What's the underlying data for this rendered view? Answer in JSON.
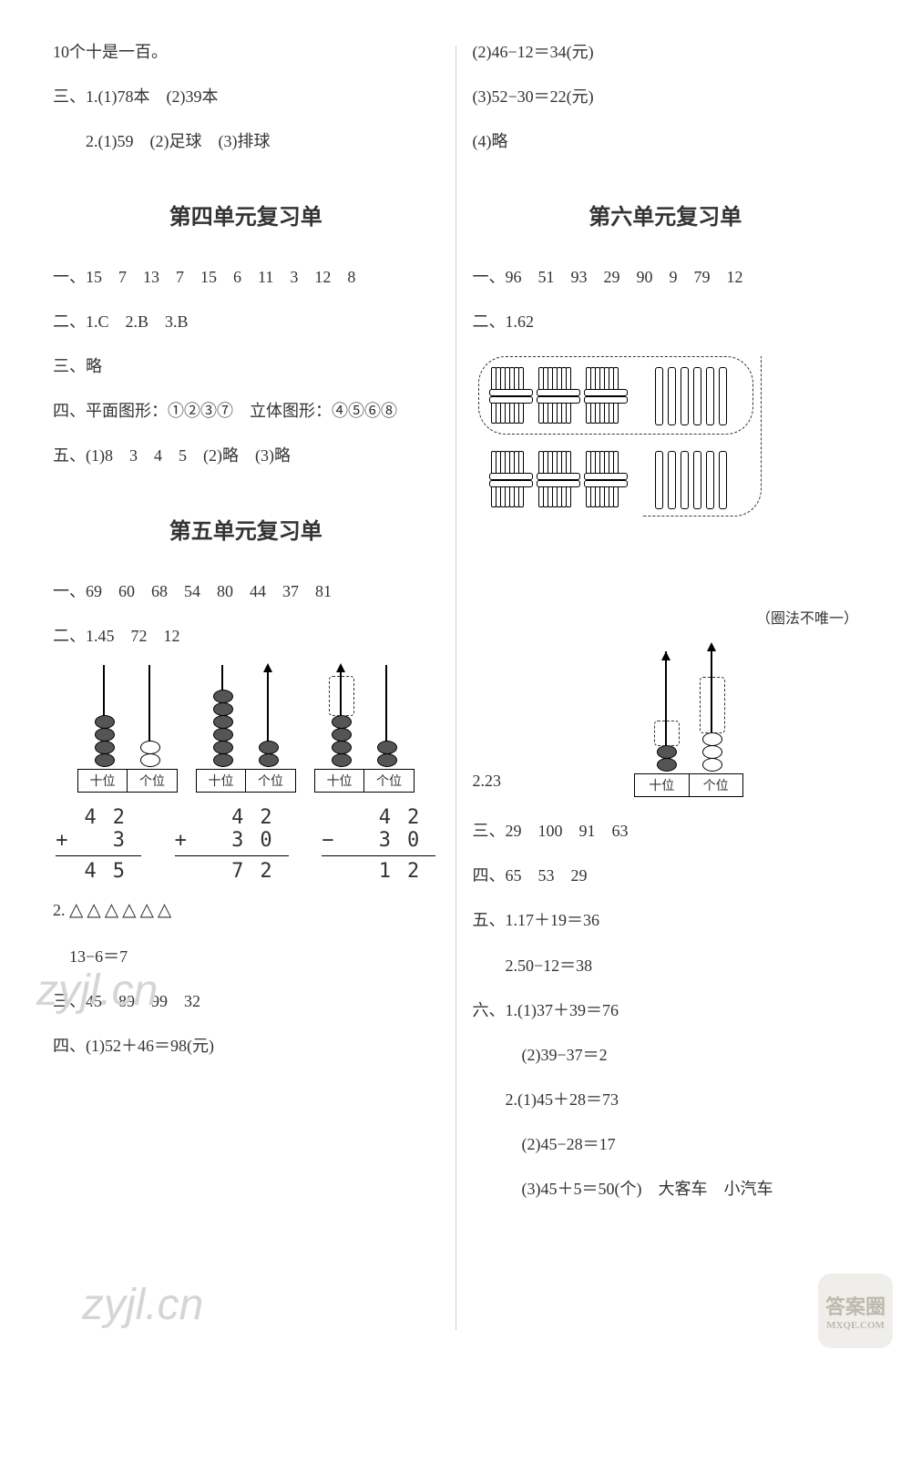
{
  "left": {
    "l1": "10个十是一百。",
    "l2": "三、1.(1)78本　(2)39本",
    "l3": "　　2.(1)59　(2)足球　(3)排球",
    "h4": "第四单元复习单",
    "u4_1": "一、15　7　13　7　15　6　11　3　12　8",
    "u4_2": "二、1.C　2.B　3.B",
    "u4_3": "三、略",
    "u4_4": "四、平面图形：①②③⑦　立体图形：④⑤⑥⑧",
    "u4_5": "五、(1)8　3　4　5　(2)略　(3)略",
    "h5": "第五单元复习单",
    "u5_1": "一、69　60　68　54　80　44　37　81",
    "u5_2": "二、1.45　72　12",
    "abacus_labels": {
      "tens": "十位",
      "ones": "个位"
    },
    "abacus": [
      {
        "tens_beads": 4,
        "ones_beads": 2,
        "ones_fill": "#ffffff",
        "arrow": false,
        "dash_extra": false
      },
      {
        "tens_beads": 6,
        "ones_beads": 2,
        "ones_fill": "#555555",
        "arrow": true,
        "dash_extra": false
      },
      {
        "tens_beads": 4,
        "ones_beads": 2,
        "ones_fill": "#555555",
        "arrow": true,
        "dash_extra": true
      }
    ],
    "arith": [
      {
        "r1": "42",
        "r2_op": "+",
        "r2": " 3",
        "ans": "45"
      },
      {
        "r1": "42",
        "r2_op": "+",
        "r2": "30",
        "ans": "72"
      },
      {
        "r1": "42",
        "r2_op": "−",
        "r2": "30",
        "ans": "12"
      }
    ],
    "u5_tri_label": "2.",
    "u5_tri": "△△△△△△",
    "u5_tri_eq": "　13−6＝7",
    "u5_3": "三、45　89　99　32",
    "u5_4": "四、(1)52＋46＝98(元)"
  },
  "right": {
    "r1": "(2)46−12＝34(元)",
    "r2": "(3)52−30＝22(元)",
    "r3": "(4)略",
    "h6": "第六单元复习单",
    "u6_1": "一、96　51　93　29　90　9　79　12",
    "u6_2": "二、1.62",
    "sticks_note": "（圈法不唯一）",
    "u6_2b": "2.23",
    "abacus_small": {
      "tens_beads": 2,
      "ones_beads": 3,
      "tens_label": "十位",
      "ones_label": "个位"
    },
    "u6_3": "三、29　100　91　63",
    "u6_4": "四、65　53　29",
    "u6_5a": "五、1.17＋19＝36",
    "u6_5b": "　　2.50−12＝38",
    "u6_6a": "六、1.(1)37＋39＝76",
    "u6_6b": "　　　(2)39−37＝2",
    "u6_6c": "　　2.(1)45＋28＝73",
    "u6_6d": "　　　(2)45−28＝17",
    "u6_6e": "　　　(3)45＋5＝50(个)　大客车　小汽车"
  },
  "watermarks": {
    "w1": "zyjl.cn",
    "w2": "zyjl.cn"
  },
  "badge": {
    "line1": "答案圈",
    "line2": "MXQE.COM"
  },
  "colors": {
    "text": "#333333",
    "bead_fill_dark": "#555555",
    "bead_fill_light": "#ffffff"
  }
}
